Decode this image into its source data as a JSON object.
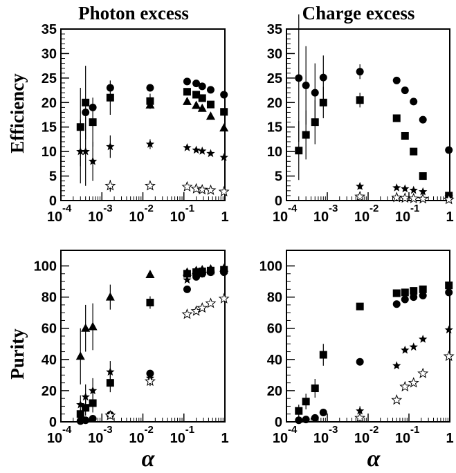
{
  "chart_data": [
    {
      "type": "scatter",
      "title": "Photon excess",
      "ylabel": "Efficiency",
      "xlabel": "",
      "xscale": "log",
      "xlim": [
        0.0001,
        1
      ],
      "ylim": [
        0,
        35
      ],
      "yticks": [
        "0",
        "5",
        "10",
        "15",
        "20",
        "25",
        "30",
        "35"
      ],
      "xticks": [
        {
          "base": "10",
          "exp": "-4"
        },
        {
          "base": "10",
          "exp": "-3"
        },
        {
          "base": "10",
          "exp": "-2"
        },
        {
          "base": "10",
          "exp": "-1"
        },
        {
          "base": "1",
          "exp": ""
        }
      ],
      "series": [
        {
          "marker": "circle",
          "x": [
            0.0004,
            0.0006,
            0.0016,
            0.015,
            0.12,
            0.2,
            0.28,
            0.45,
            0.95
          ],
          "y": [
            18,
            19,
            23,
            23,
            24.3,
            23.9,
            23.3,
            22.6,
            21.6
          ],
          "err": [
            0,
            0,
            0,
            0,
            0,
            0,
            0,
            0,
            0
          ]
        },
        {
          "marker": "square",
          "x": [
            0.0003,
            0.0004,
            0.0006,
            0.0016,
            0.015,
            0.12,
            0.2,
            0.28,
            0.45,
            0.95
          ],
          "y": [
            15,
            20,
            16,
            21,
            20.3,
            22.2,
            21.6,
            20.9,
            19.6,
            18.1
          ],
          "err": [
            8,
            7.5,
            5,
            3.5,
            1.5,
            0,
            0,
            0,
            0,
            0
          ]
        },
        {
          "marker": "triangle",
          "x": [
            0.015,
            0.12,
            0.2,
            0.28,
            0.45,
            0.95
          ],
          "y": [
            19.5,
            20.2,
            19.4,
            18.8,
            17.2,
            14.8
          ],
          "err": [
            0.8,
            0,
            0,
            0,
            0,
            0
          ]
        },
        {
          "marker": "filled-star",
          "x": [
            0.0003,
            0.0004,
            0.0006,
            0.0016,
            0.015,
            0.12,
            0.2,
            0.28,
            0.45,
            0.95
          ],
          "y": [
            10,
            10,
            8,
            11,
            11.5,
            10.8,
            10.3,
            10.1,
            9.6,
            8.8
          ],
          "err": [
            6.5,
            7,
            4,
            2.3,
            1,
            0,
            0,
            0,
            0,
            0
          ]
        },
        {
          "marker": "open-star",
          "x": [
            0.0016,
            0.015,
            0.12,
            0.2,
            0.28,
            0.45,
            0.95
          ],
          "y": [
            3,
            3,
            2.8,
            2.4,
            2.2,
            2.1,
            1.8
          ],
          "err": [
            1.2,
            0,
            0,
            0,
            0,
            0,
            0
          ]
        }
      ]
    },
    {
      "type": "scatter",
      "title": "Charge excess",
      "ylabel": "",
      "xlabel": "",
      "xscale": "log",
      "xlim": [
        0.0001,
        1
      ],
      "ylim": [
        0,
        35
      ],
      "yticks": [
        "0",
        "5",
        "10",
        "15",
        "20",
        "25",
        "30",
        "35"
      ],
      "xticks": [
        {
          "base": "10",
          "exp": "-4"
        },
        {
          "base": "10",
          "exp": "-3"
        },
        {
          "base": "10",
          "exp": "-2"
        },
        {
          "base": "10",
          "exp": "-1"
        },
        {
          "base": "1",
          "exp": ""
        }
      ],
      "series": [
        {
          "marker": "circle",
          "x": [
            0.0002,
            0.0003,
            0.0005,
            0.0008,
            0.0063,
            0.05,
            0.08,
            0.13,
            0.22,
            0.95
          ],
          "y": [
            25,
            23.5,
            22,
            25.1,
            26.3,
            24.5,
            22.5,
            20.2,
            16.5,
            10.3
          ],
          "err": [
            13,
            8,
            6,
            4.5,
            1.5,
            0,
            0,
            0,
            0,
            0
          ]
        },
        {
          "marker": "square",
          "x": [
            0.0002,
            0.0003,
            0.0005,
            0.0008,
            0.0063,
            0.05,
            0.08,
            0.13,
            0.22,
            0.95
          ],
          "y": [
            10.2,
            13.4,
            16,
            20,
            20.5,
            16.8,
            13.2,
            10,
            5,
            1
          ],
          "err": [
            6,
            5,
            4.5,
            3.2,
            1.5,
            0,
            0,
            0,
            0,
            0
          ]
        },
        {
          "marker": "filled-star",
          "x": [
            0.0063,
            0.05,
            0.08,
            0.13,
            0.22,
            0.95
          ],
          "y": [
            2.9,
            2.6,
            2.4,
            2.1,
            1.8,
            0.8
          ],
          "err": [
            0.6,
            0,
            0,
            0,
            0,
            0
          ]
        },
        {
          "marker": "open-star",
          "x": [
            0.0063,
            0.05,
            0.08,
            0.13,
            0.22,
            0.95
          ],
          "y": [
            0.8,
            0.6,
            0.5,
            0.4,
            0.35,
            0.2
          ],
          "err": [
            0.3,
            0,
            0,
            0,
            0,
            0
          ]
        }
      ]
    },
    {
      "type": "scatter",
      "title": "",
      "ylabel": "Purity",
      "xlabel": "α",
      "xscale": "log",
      "xlim": [
        0.0001,
        1
      ],
      "ylim": [
        0,
        110
      ],
      "yticks": [
        "0",
        "20",
        "40",
        "60",
        "80",
        "100"
      ],
      "xticks": [
        {
          "base": "10",
          "exp": "-4"
        },
        {
          "base": "10",
          "exp": "-3"
        },
        {
          "base": "10",
          "exp": "-2"
        },
        {
          "base": "10",
          "exp": "-1"
        },
        {
          "base": "1",
          "exp": ""
        }
      ],
      "series": [
        {
          "marker": "circle",
          "x": [
            0.0003,
            0.0004,
            0.0006,
            0.0016,
            0.015,
            0.12,
            0.2,
            0.28,
            0.45,
            0.95
          ],
          "y": [
            0.5,
            1,
            2,
            4.5,
            31,
            85,
            93,
            95,
            96,
            96
          ],
          "err": [
            0,
            0,
            0,
            0,
            0,
            0,
            0,
            0,
            0,
            0
          ]
        },
        {
          "marker": "square",
          "x": [
            0.0003,
            0.0004,
            0.0006,
            0.0016,
            0.015,
            0.12,
            0.2,
            0.28,
            0.45,
            0.95
          ],
          "y": [
            5,
            9,
            12,
            25,
            76.5,
            95,
            96,
            96.5,
            97,
            97.5
          ],
          "err": [
            3,
            5,
            6,
            6,
            4,
            0,
            0,
            0,
            0,
            0
          ]
        },
        {
          "marker": "triangle",
          "x": [
            0.0003,
            0.0004,
            0.0006,
            0.0016,
            0.015,
            0.12,
            0.2,
            0.28,
            0.45,
            0.95
          ],
          "y": [
            42,
            60,
            61,
            80,
            94.5,
            96,
            97,
            97.5,
            98,
            98.5
          ],
          "err": [
            18,
            15,
            15,
            8,
            1.5,
            0,
            0,
            0,
            0,
            0
          ]
        },
        {
          "marker": "filled-star",
          "x": [
            0.0003,
            0.0004,
            0.0006,
            0.0016,
            0.015,
            0.12,
            0.2,
            0.28,
            0.45,
            0.95
          ],
          "y": [
            11,
            16,
            20,
            32,
            28,
            91,
            94,
            95,
            96,
            96.5
          ],
          "err": [
            6,
            8,
            8,
            7,
            3,
            0,
            0,
            0,
            0,
            0
          ]
        },
        {
          "marker": "open-star",
          "x": [
            0.0016,
            0.015,
            0.12,
            0.2,
            0.28,
            0.45,
            0.95
          ],
          "y": [
            4,
            26,
            69,
            71,
            73,
            76,
            79
          ],
          "err": [
            2,
            3,
            0,
            0,
            0,
            0,
            0
          ]
        }
      ]
    },
    {
      "type": "scatter",
      "title": "",
      "ylabel": "",
      "xlabel": "α",
      "xscale": "log",
      "xlim": [
        0.0001,
        1
      ],
      "ylim": [
        0,
        110
      ],
      "yticks": [
        "0",
        "20",
        "40",
        "60",
        "80",
        "100"
      ],
      "xticks": [
        {
          "base": "10",
          "exp": "-4"
        },
        {
          "base": "10",
          "exp": "-3"
        },
        {
          "base": "10",
          "exp": "-2"
        },
        {
          "base": "10",
          "exp": "-1"
        },
        {
          "base": "1",
          "exp": ""
        }
      ],
      "series": [
        {
          "marker": "circle",
          "x": [
            0.0002,
            0.0003,
            0.0005,
            0.0008,
            0.0063,
            0.05,
            0.08,
            0.13,
            0.22,
            0.95
          ],
          "y": [
            1,
            1.5,
            2.5,
            6,
            38.5,
            75.5,
            78.5,
            80,
            81,
            83
          ],
          "err": [
            0,
            0,
            0,
            0,
            0,
            0,
            0,
            0,
            0,
            0
          ]
        },
        {
          "marker": "square",
          "x": [
            0.0002,
            0.0003,
            0.0005,
            0.0008,
            0.0063,
            0.05,
            0.08,
            0.13,
            0.22,
            0.95
          ],
          "y": [
            7,
            13,
            21.5,
            43,
            74,
            82.5,
            83,
            84,
            85,
            87.5
          ],
          "err": [
            4,
            5,
            6,
            7,
            2,
            0,
            0,
            0,
            0,
            0
          ]
        },
        {
          "marker": "filled-star",
          "x": [
            0.0063,
            0.05,
            0.08,
            0.13,
            0.22,
            0.95
          ],
          "y": [
            7,
            36,
            46,
            48,
            53,
            59
          ],
          "err": [
            3,
            0,
            0,
            0,
            0,
            0
          ]
        },
        {
          "marker": "open-star",
          "x": [
            0.0063,
            0.05,
            0.08,
            0.13,
            0.22,
            0.95
          ],
          "y": [
            2.5,
            14,
            22.5,
            25,
            31,
            42
          ],
          "err": [
            1.5,
            0,
            0,
            0,
            0,
            0
          ]
        }
      ]
    }
  ]
}
